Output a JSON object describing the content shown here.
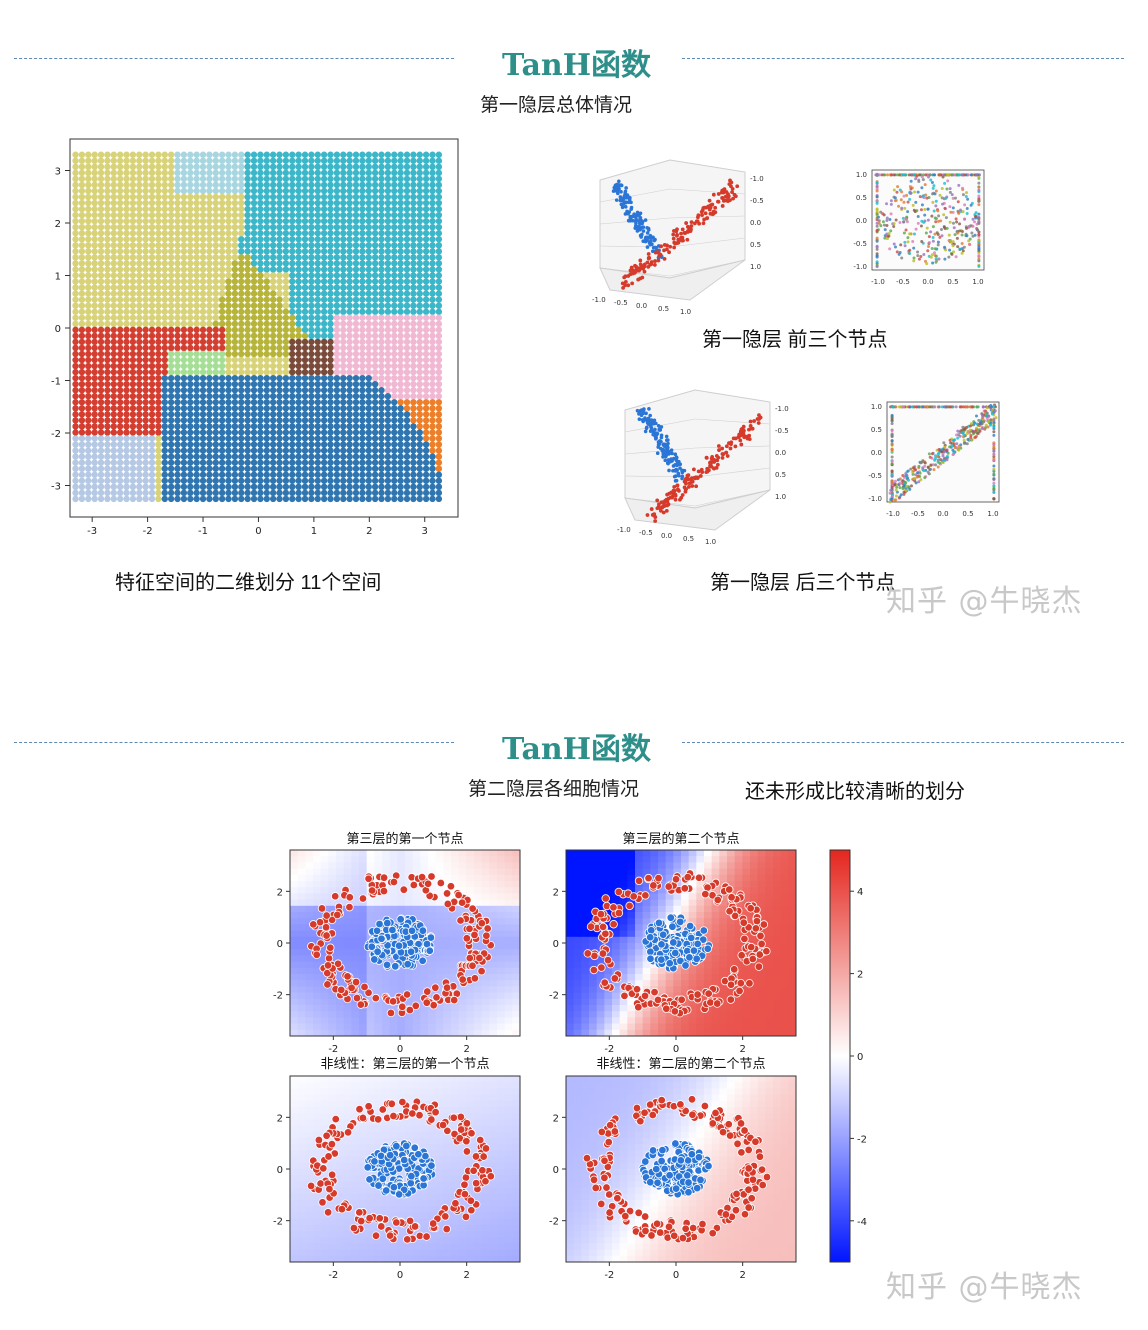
{
  "section1": {
    "title": "TanH函数",
    "subtitle": "第一隐层总体情况",
    "left_caption": "特征空间的二维划分 11个空间",
    "caption_front": "第一隐层 前三个节点",
    "caption_back": "第一隐层 后三个节点"
  },
  "section2": {
    "title": "TanH函数",
    "subtitle": "第二隐层各细胞情况",
    "note": "还未形成比较清晰的划分"
  },
  "watermark": "知乎 @牛晓杰",
  "colors": {
    "title_teal": "#2e8f8a",
    "red_class": "#d63a2b",
    "blue_class": "#2a75d6",
    "cmap_low": "#0015ff",
    "cmap_mid": "#ffffff",
    "cmap_high": "#e4261e"
  },
  "chart_data": [
    {
      "type": "scatter",
      "subtype": "region-partition",
      "title": "",
      "xlabel": "",
      "ylabel": "",
      "xlim": [
        -3.4,
        3.6
      ],
      "ylim": [
        -3.6,
        3.6
      ],
      "xticks": [
        "-3",
        "-2",
        "-1",
        "0",
        "1",
        "2",
        "3"
      ],
      "yticks": [
        "3",
        "2",
        "1",
        "0",
        "-1",
        "-2",
        "-3"
      ],
      "n_regions": 11,
      "region_colors": [
        "#d8d278",
        "#a8d6e0",
        "#3cb7c9",
        "#b7b43a",
        "#d33e31",
        "#b5c8e4",
        "#a5de95",
        "#7a4b3a",
        "#f0b8d2",
        "#ee7f2a",
        "#2f75b0"
      ]
    },
    {
      "type": "scatter",
      "subtype": "3d",
      "title": "",
      "axis_ticks": [
        "-1.0",
        "-0.5",
        "0.0",
        "0.5",
        "1.0"
      ],
      "series": [
        "#3b7fd0",
        "#d2493d"
      ]
    },
    {
      "type": "scatter",
      "title": "",
      "xticks": [
        "-1.0",
        "-0.5",
        "0.0",
        "0.5",
        "1.0"
      ],
      "yticks": [
        "1.0",
        "0.5",
        "0.0",
        "-0.5",
        "-1.0"
      ]
    },
    {
      "type": "scatter",
      "subtype": "3d",
      "title": "",
      "axis_ticks": [
        "-1.0",
        "-0.5",
        "0.0",
        "0.5",
        "1.0"
      ]
    },
    {
      "type": "scatter",
      "title": "",
      "xticks": [
        "-1.0",
        "-0.5",
        "0.0",
        "0.5",
        "1.0"
      ],
      "yticks": [
        "1.0",
        "0.5",
        "0.0",
        "-0.5",
        "-1.0"
      ]
    },
    {
      "type": "heatmap",
      "panels": [
        {
          "title": "第三层的第一个节点",
          "field": "soft"
        },
        {
          "title": "第三层的第二个节点",
          "field": "strong"
        },
        {
          "title": "非线性：第三层的第一个节点",
          "field": "soft-nl"
        },
        {
          "title": "非线性：第二层的第二个节点",
          "field": "strong-nl"
        }
      ],
      "xticks": [
        "-2",
        "0",
        "2"
      ],
      "yticks": [
        "2",
        "0",
        "-2"
      ],
      "xlim": [
        -3.3,
        3.6
      ],
      "ylim": [
        -3.6,
        3.6
      ],
      "classes": [
        {
          "label": "outer ring",
          "color": "#d63a2b",
          "radius": [
            2.0,
            2.7
          ]
        },
        {
          "label": "inner cluster",
          "color": "#2a75d6",
          "radius": [
            0,
            1.0
          ]
        }
      ],
      "colorbar": {
        "min": -5,
        "max": 5,
        "ticks": [
          "4",
          "2",
          "0",
          "-2",
          "-4"
        ]
      }
    }
  ]
}
